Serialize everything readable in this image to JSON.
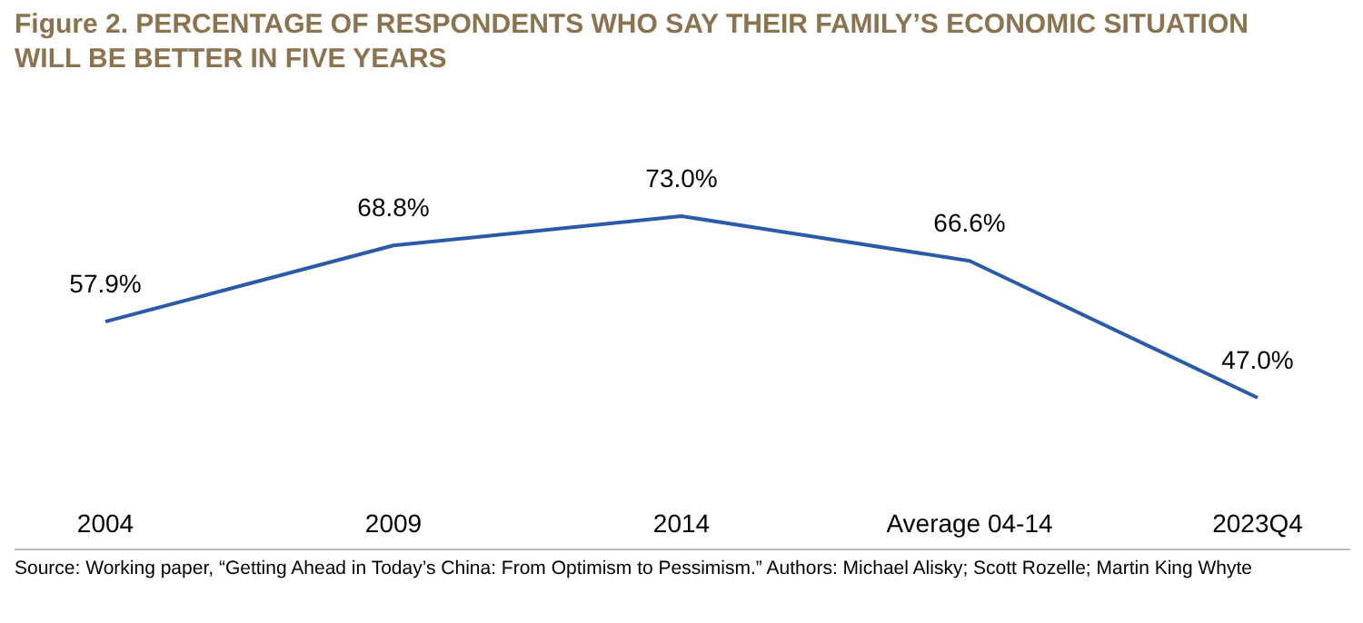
{
  "chart_data": {
    "type": "line",
    "title": "Figure 2. PERCENTAGE OF RESPONDENTS WHO SAY THEIR FAMILY’S ECONOMIC SITUATION WILL BE BETTER IN FIVE YEARS",
    "categories": [
      "2004",
      "2009",
      "2014",
      "Average 04-14",
      "2023Q4"
    ],
    "series": [
      {
        "color": "#2a5aa8",
        "values": [
          57.9,
          68.8,
          73.0,
          66.6,
          47.0
        ],
        "value_labels": [
          "57.9%",
          "68.8%",
          "73.0%",
          "66.6%",
          "47.0%"
        ]
      }
    ],
    "marker": "none",
    "grid": false,
    "annotations": [
      "Source: Working paper, “Getting Ahead in Today’s China: From Optimism to Pessimism.” Authors: Michael Alisky; Scott Rozelle; Martin King Whyte"
    ]
  }
}
